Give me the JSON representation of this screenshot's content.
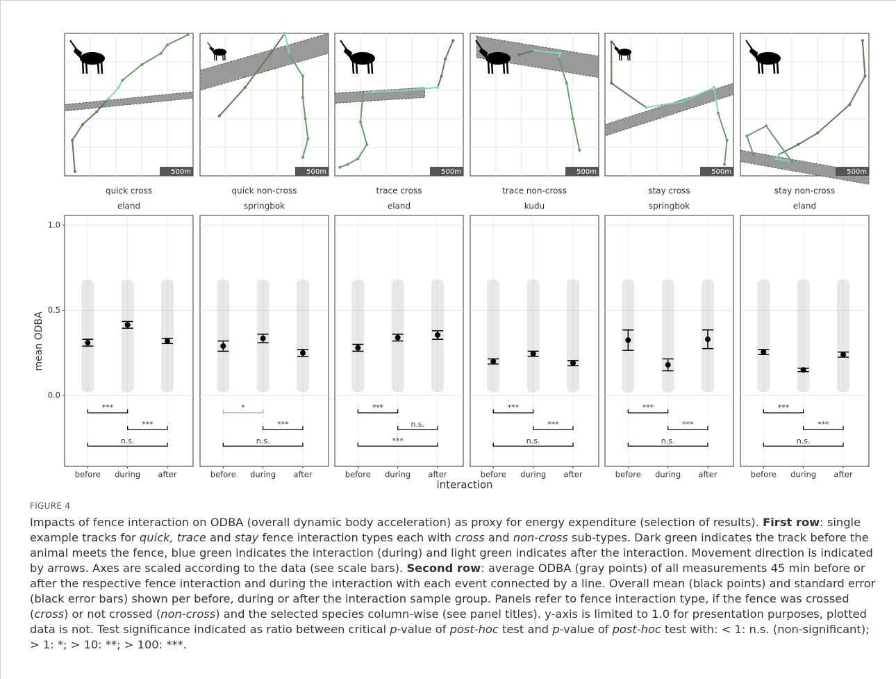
{
  "track_panels": [
    {
      "scale_label": "500m"
    },
    {
      "scale_label": "500m"
    },
    {
      "scale_label": "500m"
    },
    {
      "scale_label": "500m"
    },
    {
      "scale_label": "500m"
    },
    {
      "scale_label": "500m"
    }
  ],
  "axes": {
    "y_label": "mean ODBA",
    "x_label": "interaction"
  },
  "chart_data": [
    {
      "type": "pointrange",
      "title": "quick cross",
      "subtitle": "eland",
      "categories": [
        "before",
        "during",
        "after"
      ],
      "values": [
        0.31,
        0.415,
        0.32
      ],
      "errors": [
        0.02,
        0.02,
        0.015
      ],
      "color": "#000000",
      "ylim": [
        -0.416,
        1.057
      ],
      "yticks": [
        {
          "value": 0,
          "label": "0.0"
        },
        0.5,
        {
          "value": 1,
          "label": "1.0"
        }
      ],
      "grid": true,
      "comparisons": [
        {
          "groups": [
            "before",
            "during"
          ],
          "label": "***",
          "color": "#000000"
        },
        {
          "groups": [
            "during",
            "after"
          ],
          "label": "***",
          "color": "#000000"
        },
        {
          "groups": [
            "before",
            "after"
          ],
          "label": "n.s.",
          "color": "#000000"
        }
      ]
    },
    {
      "type": "pointrange",
      "title": "quick non-cross",
      "subtitle": "springbok",
      "categories": [
        "before",
        "during",
        "after"
      ],
      "values": [
        0.29,
        0.335,
        0.25
      ],
      "errors": [
        0.03,
        0.025,
        0.02
      ],
      "color": "#000000",
      "ylim": [
        -0.416,
        1.057
      ],
      "yticks": [
        {
          "value": 0,
          "label": "0.0"
        },
        0.5,
        {
          "value": 1,
          "label": "1.0"
        }
      ],
      "grid": true,
      "comparisons": [
        {
          "groups": [
            "before",
            "during"
          ],
          "label": "*",
          "color": "#aaaaaa"
        },
        {
          "groups": [
            "during",
            "after"
          ],
          "label": "***",
          "color": "#000000"
        },
        {
          "groups": [
            "before",
            "after"
          ],
          "label": "n.s.",
          "color": "#000000"
        }
      ]
    },
    {
      "type": "pointrange",
      "title": "trace cross",
      "subtitle": "eland",
      "categories": [
        "before",
        "during",
        "after"
      ],
      "values": [
        0.28,
        0.34,
        0.355
      ],
      "errors": [
        0.02,
        0.02,
        0.025
      ],
      "color": "#000000",
      "ylim": [
        -0.416,
        1.057
      ],
      "yticks": [
        {
          "value": 0,
          "label": "0.0"
        },
        0.5,
        {
          "value": 1,
          "label": "1.0"
        }
      ],
      "grid": true,
      "comparisons": [
        {
          "groups": [
            "before",
            "during"
          ],
          "label": "***",
          "color": "#000000"
        },
        {
          "groups": [
            "during",
            "after"
          ],
          "label": "n.s.",
          "color": "#000000"
        },
        {
          "groups": [
            "before",
            "after"
          ],
          "label": "***",
          "color": "#000000"
        }
      ]
    },
    {
      "type": "pointrange",
      "title": "trace non-cross",
      "subtitle": "kudu",
      "categories": [
        "before",
        "during",
        "after"
      ],
      "values": [
        0.2,
        0.245,
        0.19
      ],
      "errors": [
        0.015,
        0.015,
        0.015
      ],
      "color": "#000000",
      "ylim": [
        -0.416,
        1.057
      ],
      "yticks": [
        {
          "value": 0,
          "label": "0.0"
        },
        0.5,
        {
          "value": 1,
          "label": "1.0"
        }
      ],
      "grid": true,
      "comparisons": [
        {
          "groups": [
            "before",
            "during"
          ],
          "label": "***",
          "color": "#000000"
        },
        {
          "groups": [
            "during",
            "after"
          ],
          "label": "***",
          "color": "#000000"
        },
        {
          "groups": [
            "before",
            "after"
          ],
          "label": "n.s.",
          "color": "#000000"
        }
      ]
    },
    {
      "type": "pointrange",
      "title": "stay cross",
      "subtitle": "springbok",
      "categories": [
        "before",
        "during",
        "after"
      ],
      "values": [
        0.325,
        0.18,
        0.33
      ],
      "errors": [
        0.06,
        0.035,
        0.055
      ],
      "color": "#000000",
      "ylim": [
        -0.416,
        1.057
      ],
      "yticks": [
        {
          "value": 0,
          "label": "0.0"
        },
        0.5,
        {
          "value": 1,
          "label": "1.0"
        }
      ],
      "grid": true,
      "comparisons": [
        {
          "groups": [
            "before",
            "during"
          ],
          "label": "***",
          "color": "#000000"
        },
        {
          "groups": [
            "during",
            "after"
          ],
          "label": "***",
          "color": "#000000"
        },
        {
          "groups": [
            "before",
            "after"
          ],
          "label": "n.s.",
          "color": "#000000"
        }
      ]
    },
    {
      "type": "pointrange",
      "title": "stay non-cross",
      "subtitle": "eland",
      "categories": [
        "before",
        "during",
        "after"
      ],
      "values": [
        0.255,
        0.15,
        0.24
      ],
      "errors": [
        0.015,
        0.01,
        0.015
      ],
      "color": "#000000",
      "ylim": [
        -0.416,
        1.057
      ],
      "yticks": [
        {
          "value": 0,
          "label": "0.0"
        },
        0.5,
        {
          "value": 1,
          "label": "1.0"
        }
      ],
      "grid": true,
      "comparisons": [
        {
          "groups": [
            "before",
            "during"
          ],
          "label": "***",
          "color": "#000000"
        },
        {
          "groups": [
            "during",
            "after"
          ],
          "label": "***",
          "color": "#000000"
        },
        {
          "groups": [
            "before",
            "after"
          ],
          "label": "n.s.",
          "color": "#000000"
        }
      ]
    }
  ],
  "caption": {
    "label": "FIGURE 4",
    "segments": [
      {
        "text": "Impacts of fence interaction on ODBA (overall dynamic body acceleration) as proxy for energy expenditure (selection of results). ",
        "style": "normal"
      },
      {
        "text": "First row",
        "style": "bold"
      },
      {
        "text": ": single example tracks for ",
        "style": "normal"
      },
      {
        "text": "quick, trace",
        "style": "italic"
      },
      {
        "text": " and ",
        "style": "normal"
      },
      {
        "text": "stay",
        "style": "italic"
      },
      {
        "text": " fence interaction types each with ",
        "style": "normal"
      },
      {
        "text": "cross",
        "style": "italic"
      },
      {
        "text": " and ",
        "style": "normal"
      },
      {
        "text": "non-cross",
        "style": "italic"
      },
      {
        "text": " sub-types. Dark green indicates the track before the animal meets the fence, blue green indicates the interaction (during) and light green indicates after the interaction. Movement direction is indicated by arrows. Axes are scaled according to the data (see scale bars). ",
        "style": "normal"
      },
      {
        "text": "Second row",
        "style": "bold"
      },
      {
        "text": ": average ODBA (gray points) of all measurements 45 min before or after the respective fence interaction and during the interaction with each event connected by a line. Overall mean (black points) and standard error (black error bars) shown per before, during or after the interaction sample group. Panels refer to fence interaction type, if the fence was crossed (",
        "style": "normal"
      },
      {
        "text": "cross",
        "style": "italic"
      },
      {
        "text": ") or not crossed (",
        "style": "normal"
      },
      {
        "text": "non-cross",
        "style": "italic"
      },
      {
        "text": ") and the selected species column-wise (see panel titles). y-axis is limited to 1.0 for presentation purposes, plotted data is not. Test significance indicated as ratio between critical ",
        "style": "normal"
      },
      {
        "text": "p",
        "style": "italic"
      },
      {
        "text": "-value of ",
        "style": "normal"
      },
      {
        "text": "post-hoc",
        "style": "italic"
      },
      {
        "text": " test and ",
        "style": "normal"
      },
      {
        "text": "p",
        "style": "italic"
      },
      {
        "text": "-value of ",
        "style": "normal"
      },
      {
        "text": "post-hoc",
        "style": "italic"
      },
      {
        "text": " test with: < 1: n.s. (non-significant); > 1: *; > 10: **; > 100: ***.",
        "style": "normal"
      }
    ]
  }
}
